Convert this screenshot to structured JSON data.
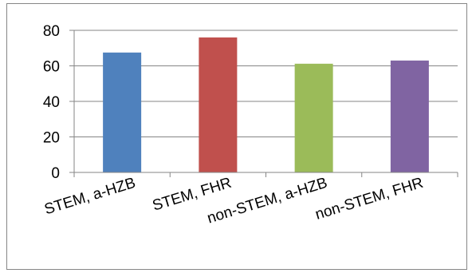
{
  "chart_data": {
    "type": "bar",
    "categories": [
      "STEM, a-HZB",
      "STEM, FHR",
      "non-STEM, a-HZB",
      "non-STEM, FHR"
    ],
    "values": [
      67.5,
      76,
      61.2,
      63
    ],
    "colors": [
      "#4f81bd",
      "#c0504d",
      "#9bbb59",
      "#8064a2"
    ],
    "title": "",
    "xlabel": "",
    "ylabel": "",
    "ylim": [
      0,
      80
    ],
    "yticks": [
      "0",
      "20",
      "40",
      "60",
      "80"
    ],
    "grid": true,
    "legend": "none"
  }
}
